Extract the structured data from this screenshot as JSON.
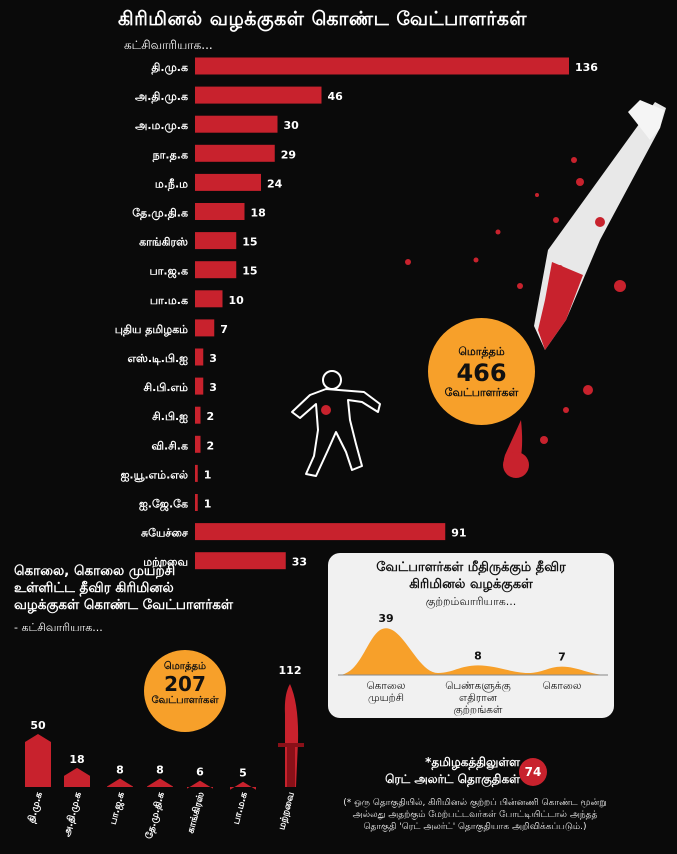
{
  "header": {
    "title": "கிரிமினல் வழக்குகள் கொண்ட வேட்பாளர்கள்",
    "subtitle": "கட்சிவாரியாக..."
  },
  "total": {
    "label_top": "மொத்தம்",
    "value": "466",
    "label_bottom": "வேட்பாளர்கள்"
  },
  "serious_section": {
    "title_lines": [
      "கொலை, கொலை முயற்சி",
      "உள்ளிட்ட தீவிர கிரிமினல்",
      "வழக்குகள் கொண்ட வேட்பாளர்கள்"
    ],
    "subtitle": "- கட்சிவாரியாக...",
    "total": {
      "label_top": "மொத்தம்",
      "value": "207",
      "label_bottom": "வேட்பாளர்கள்"
    }
  },
  "crime_panel": {
    "title_lines": [
      "வேட்பாளர்கள் மீதிருக்கும் தீவிர",
      "கிரிமினல் வழக்குகள்"
    ],
    "subtitle": "குற்றம்வாரியாக..."
  },
  "red_alert": {
    "label_lines": [
      "*தமிழகத்திலுள்ள",
      "ரெட் அலர்ட் தொகுதிகள்"
    ],
    "value": "74",
    "footnote": "(* ஒரு தொகுதியில், கிரிமினல் குற்றப் பின்னணி கொண்ட மூன்று அல்லது அதற்கும் மேற்பட்டவர்கள் போட்டியிட்டால் அந்தத் தொகுதி 'ரெட் அலர்ட்' தொகுதியாக அறிவிக்கப்படும்.)"
  },
  "colors": {
    "bar": "#c8222d",
    "accent": "#f7a02a",
    "background": "#0a0a0a",
    "panel": "#f1f1f1"
  },
  "chart_data": [
    {
      "type": "bar",
      "orientation": "horizontal",
      "title": "கிரிமினல் வழக்குகள் கொண்ட வேட்பாளர்கள்",
      "subtitle": "கட்சிவாரியாக...",
      "categories": [
        "தி.மு.க",
        "அ.தி.மு.க",
        "அ.ம.மு.க",
        "நா.த.க",
        "ம.நீ.ம",
        "தே.மு.தி.க",
        "காங்கிரஸ்",
        "பா.ஜ.க",
        "பா.ம.க",
        "புதிய தமிழகம்",
        "எஸ்.டி.பி.ஐ",
        "சி.பி.எம்",
        "சி.பி.ஐ",
        "வி.சி.க",
        "ஐ.யூ.எம்.எல்",
        "ஐ.ஜே.கே",
        "சுயேச்சை",
        "மற்றவை"
      ],
      "values": [
        136,
        46,
        30,
        29,
        24,
        18,
        15,
        15,
        10,
        7,
        3,
        3,
        2,
        2,
        1,
        1,
        91,
        33
      ],
      "xlim": [
        0,
        140
      ]
    },
    {
      "type": "bar",
      "orientation": "vertical",
      "categories": [
        "தி.மு.க",
        "அ.தி.மு.க",
        "பா.ஜ.க",
        "தே.மு.தி.க",
        "காங்கிரஸ்",
        "பா.ம.க",
        "மற்றவை"
      ],
      "values": [
        50,
        18,
        8,
        8,
        6,
        5,
        112
      ],
      "ylim": [
        0,
        115
      ]
    },
    {
      "type": "area",
      "title": "வேட்பாளர்கள் மீதிருக்கும் தீவிர கிரிமினல் வழக்குகள்",
      "subtitle": "குற்றம்வாரியாக...",
      "categories": [
        "கொலை முயற்சி",
        "பெண்களுக்கு எதிரான குற்றங்கள்",
        "கொலை"
      ],
      "values": [
        39,
        8,
        7
      ]
    }
  ]
}
